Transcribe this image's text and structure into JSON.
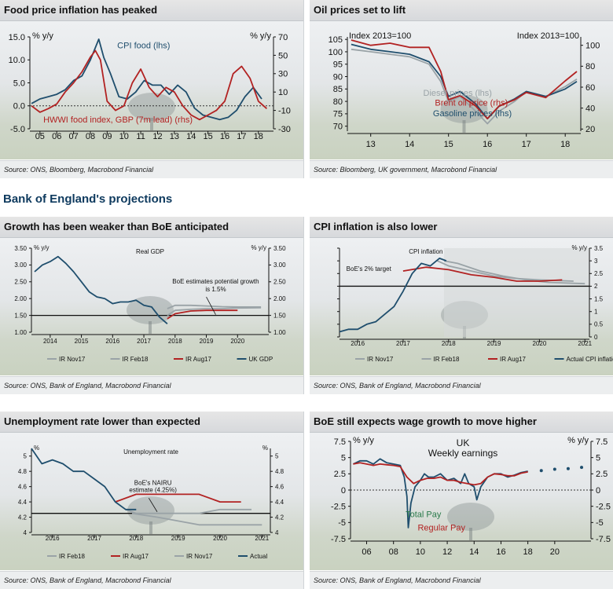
{
  "colors": {
    "navy": "#1f4e6d",
    "red": "#b22222",
    "grey": "#9aa3a7",
    "axis": "#111111"
  },
  "section_heading": "Bank of England's projections",
  "panels": [
    {
      "title": "Food price inflation has peaked",
      "source": "Source: ONS, Bloomberg, Macrobond Financial"
    },
    {
      "title": "Oil prices set to lift",
      "source": "Source: Bloomberg, UK government, Macrobond Financial"
    },
    {
      "title": "Growth has been weaker than BoE anticipated",
      "source": "Source: ONS, Bank of England, Macrobond Financial"
    },
    {
      "title": "CPI inflation is also lower",
      "source": "Source: ONS, Bank of England, Macrobond Financial"
    },
    {
      "title": "Unemployment rate lower than expected",
      "source": "Source: ONS, Bank of England, Macrobond Financial"
    },
    {
      "title": "BoE still expects wage growth to move higher",
      "source": "Source: ONS, Bank of England, Macrobond Financial"
    }
  ],
  "chart_data": [
    {
      "id": "food",
      "type": "line",
      "left_unit": "% y/y",
      "right_unit": "% y/y",
      "ylim": [
        -5,
        15
      ],
      "y_ticks": [
        15,
        10,
        5,
        0,
        -5
      ],
      "y_tick_labels": [
        "15.0",
        "10.0",
        "5.0",
        "0.0",
        "-5.0"
      ],
      "y2lim": [
        -30,
        70
      ],
      "y2_ticks": [
        70,
        50,
        30,
        10,
        -10,
        -30
      ],
      "xlim": [
        2004.4,
        2018.9
      ],
      "x_ticks": [
        2005,
        2006,
        2007,
        2008,
        2009,
        2010,
        2011,
        2012,
        2013,
        2014,
        2015,
        2016,
        2017,
        2018
      ],
      "x_tick_labels": [
        "05",
        "06",
        "07",
        "08",
        "09",
        "10",
        "11",
        "12",
        "13",
        "14",
        "15",
        "16",
        "17",
        "18"
      ],
      "zero_line": 0,
      "labels": [
        {
          "text": "CPI food (lhs)",
          "x": 2009.6,
          "y": 12.5,
          "color": "navy"
        },
        {
          "text": "HWWI food index, GBP (7m lead) (rhs)",
          "x": 2005.2,
          "y": -3.6,
          "color": "red"
        }
      ],
      "series": [
        {
          "name": "CPI food (lhs)",
          "color": "navy",
          "axis": "left",
          "x": [
            2004.5,
            2005,
            2005.5,
            2006,
            2006.5,
            2007,
            2007.5,
            2008,
            2008.5,
            2008.8,
            2009.2,
            2009.7,
            2010.2,
            2010.7,
            2011.2,
            2011.7,
            2012.2,
            2012.7,
            2013.2,
            2013.7,
            2014.2,
            2014.7,
            2015.2,
            2015.7,
            2016.2,
            2016.7,
            2017.2,
            2017.7,
            2018.2
          ],
          "values": [
            0.5,
            1.5,
            2.0,
            2.5,
            3.5,
            5.5,
            6.5,
            10.0,
            14.5,
            10.5,
            7.0,
            2.0,
            1.5,
            3.0,
            5.5,
            4.5,
            4.5,
            2.5,
            4.5,
            3.0,
            -0.5,
            -2.0,
            -2.5,
            -3.0,
            -2.5,
            -1.0,
            2.0,
            4.0,
            1.5
          ]
        },
        {
          "name": "HWWI food index, GBP (7m lead) (rhs)",
          "color": "red",
          "axis": "right",
          "x": [
            2004.5,
            2005,
            2005.5,
            2006,
            2006.5,
            2007,
            2007.5,
            2008,
            2008.3,
            2008.6,
            2009,
            2009.5,
            2010,
            2010.5,
            2011,
            2011.5,
            2012,
            2012.5,
            2013,
            2013.5,
            2014,
            2014.5,
            2015,
            2015.5,
            2016,
            2016.5,
            2017,
            2017.5,
            2018,
            2018.5
          ],
          "values": [
            -5,
            -12,
            -8,
            -3,
            10,
            20,
            32,
            48,
            55,
            45,
            0,
            -10,
            -5,
            20,
            35,
            15,
            5,
            15,
            10,
            -5,
            -15,
            -20,
            -15,
            -10,
            0,
            30,
            38,
            25,
            0,
            -8
          ]
        }
      ]
    },
    {
      "id": "oil",
      "type": "line",
      "left_unit": "Index 2013=100",
      "right_unit": "Index 2013=100",
      "ylim": [
        68,
        106
      ],
      "y_ticks": [
        105,
        100,
        95,
        90,
        85,
        80,
        75,
        70
      ],
      "y2lim": [
        18,
        108
      ],
      "y2_ticks": [
        100,
        80,
        60,
        40,
        20
      ],
      "xlim": [
        2012.4,
        2018.4
      ],
      "x_ticks": [
        2013,
        2014,
        2015,
        2016,
        2017,
        2018
      ],
      "x_tick_labels": [
        "13",
        "14",
        "15",
        "16",
        "17",
        "18"
      ],
      "labels": [
        {
          "text": "Diesel prices (lhs)",
          "x": 2014.35,
          "y": 82.2,
          "color": "grey"
        },
        {
          "text": "Brent oil price (rhs)",
          "x": 2014.65,
          "y": 78.3,
          "color": "red"
        },
        {
          "text": "Gasoline prices (lhs)",
          "x": 2014.6,
          "y": 74.0,
          "color": "navy"
        }
      ],
      "series": [
        {
          "name": "Diesel prices (lhs)",
          "color": "grey",
          "axis": "left",
          "x": [
            2012.5,
            2013,
            2013.5,
            2014,
            2014.5,
            2014.8,
            2015,
            2015.3,
            2015.7,
            2016,
            2016.3,
            2016.7,
            2017,
            2017.5,
            2018,
            2018.3
          ],
          "values": [
            101,
            100,
            99,
            98,
            95,
            88,
            80,
            82,
            76,
            71,
            76,
            80,
            84,
            82,
            86,
            89
          ]
        },
        {
          "name": "Gasoline prices (lhs)",
          "color": "navy",
          "axis": "left",
          "x": [
            2012.5,
            2013,
            2013.5,
            2014,
            2014.5,
            2014.8,
            2015,
            2015.3,
            2015.7,
            2016,
            2016.3,
            2016.7,
            2017,
            2017.5,
            2018,
            2018.3
          ],
          "values": [
            103,
            101,
            100,
            99,
            96,
            90,
            82,
            84,
            79,
            73,
            78,
            81,
            84,
            82,
            85,
            88
          ]
        },
        {
          "name": "Brent oil price (rhs)",
          "color": "red",
          "axis": "right",
          "x": [
            2012.5,
            2013,
            2013.5,
            2014,
            2014.5,
            2014.8,
            2015,
            2015.3,
            2015.7,
            2016,
            2016.3,
            2016.7,
            2017,
            2017.5,
            2018,
            2018.3
          ],
          "values": [
            105,
            100,
            102,
            98,
            98,
            75,
            48,
            52,
            42,
            30,
            42,
            48,
            55,
            50,
            66,
            75
          ]
        }
      ]
    },
    {
      "id": "gdp",
      "type": "line",
      "left_unit": "% y/y",
      "right_unit": "% y/y",
      "subtitle": "Real GDP",
      "ylim": [
        1.0,
        3.5
      ],
      "y_ticks": [
        3.5,
        3.0,
        2.5,
        2.0,
        1.5,
        1.0
      ],
      "y_tick_labels": [
        "3.50",
        "3.00",
        "2.50",
        "2.00",
        "1.50",
        "1.00"
      ],
      "xlim": [
        2013.4,
        2021.0
      ],
      "x_ticks": [
        2014,
        2015,
        2016,
        2017,
        2018,
        2019,
        2020
      ],
      "ref_line": 1.5,
      "annotation": "BoE estimates potential growth is 1.5%",
      "legend": [
        "IR Nov17",
        "IR Feb18",
        "IR Aug17",
        "UK GDP"
      ],
      "series": [
        {
          "name": "IR Nov17",
          "color": "grey",
          "x": [
            2017.75,
            2018,
            2018.5,
            2019,
            2019.5,
            2020,
            2020.75
          ],
          "values": [
            1.5,
            1.65,
            1.68,
            1.7,
            1.7,
            1.72,
            1.73
          ]
        },
        {
          "name": "IR Feb18",
          "color": "grey",
          "x": [
            2017.75,
            2018,
            2018.5,
            2019,
            2019.5,
            2020,
            2020.75
          ],
          "values": [
            1.7,
            1.8,
            1.8,
            1.78,
            1.76,
            1.75,
            1.75
          ]
        },
        {
          "name": "IR Aug17",
          "color": "red",
          "x": [
            2017.75,
            2018,
            2018.5,
            2019,
            2019.5,
            2020
          ],
          "values": [
            1.4,
            1.55,
            1.63,
            1.65,
            1.65,
            1.65
          ]
        },
        {
          "name": "UK GDP",
          "color": "navy",
          "x": [
            2013.5,
            2013.75,
            2014,
            2014.25,
            2014.5,
            2014.75,
            2015,
            2015.25,
            2015.5,
            2015.75,
            2016,
            2016.25,
            2016.5,
            2016.75,
            2017,
            2017.25,
            2017.5,
            2017.75
          ],
          "values": [
            2.8,
            3.0,
            3.1,
            3.25,
            3.05,
            2.8,
            2.5,
            2.2,
            2.05,
            2.0,
            1.85,
            1.9,
            1.9,
            1.95,
            1.8,
            1.75,
            1.45,
            1.25
          ]
        }
      ]
    },
    {
      "id": "cpi",
      "type": "line",
      "right_unit": "% y/y",
      "subtitle": "CPI inflation",
      "ylim": [
        0,
        3.5
      ],
      "y_ticks": [
        3.5,
        3.0,
        2.5,
        2.0,
        1.5,
        1.0,
        0.5,
        0.0
      ],
      "xlim": [
        2015.6,
        2021.1
      ],
      "x_ticks": [
        2016,
        2017,
        2018,
        2019,
        2020,
        2021
      ],
      "ref_line": 2.0,
      "annotation": "BoE's 2% target",
      "legend": [
        "IR Nov17",
        "IR Feb18",
        "IR Aug17",
        "Actual CPI inflation"
      ],
      "series": [
        {
          "name": "IR Nov17",
          "color": "grey",
          "x": [
            2017.75,
            2018,
            2018.5,
            2019,
            2019.5,
            2020,
            2020.75
          ],
          "values": [
            3.0,
            2.8,
            2.6,
            2.4,
            2.3,
            2.25,
            2.2
          ]
        },
        {
          "name": "IR Feb18",
          "color": "grey",
          "x": [
            2017.9,
            2018.2,
            2018.7,
            2019.2,
            2019.7,
            2020.2,
            2021
          ],
          "values": [
            3.0,
            2.9,
            2.6,
            2.4,
            2.25,
            2.15,
            2.1
          ]
        },
        {
          "name": "IR Aug17",
          "color": "red",
          "x": [
            2017,
            2017.5,
            2018,
            2018.5,
            2019,
            2019.5,
            2020,
            2020.5
          ],
          "values": [
            2.6,
            2.75,
            2.65,
            2.45,
            2.35,
            2.2,
            2.2,
            2.25
          ]
        },
        {
          "name": "Actual CPI inflation",
          "color": "navy",
          "x": [
            2015.6,
            2015.8,
            2016,
            2016.2,
            2016.4,
            2016.6,
            2016.8,
            2017,
            2017.2,
            2017.4,
            2017.6,
            2017.8,
            2017.95
          ],
          "values": [
            0.2,
            0.3,
            0.3,
            0.5,
            0.6,
            0.9,
            1.2,
            1.8,
            2.5,
            2.9,
            2.8,
            3.1,
            3.0
          ]
        }
      ]
    },
    {
      "id": "unemp",
      "type": "line",
      "left_unit": "%",
      "right_unit": "%",
      "subtitle": "Unemployment rate",
      "ylim": [
        4.0,
        5.1
      ],
      "y_ticks": [
        5.0,
        4.8,
        4.6,
        4.4,
        4.2,
        4.0
      ],
      "xlim": [
        2015.5,
        2021.2
      ],
      "x_ticks": [
        2016,
        2017,
        2018,
        2019,
        2020,
        2021
      ],
      "ref_line": 4.25,
      "annotation": "BoE's NAIRU estimate (4.25%)",
      "legend": [
        "IR Feb18",
        "IR Aug17",
        "IR Nov17",
        "Actual"
      ],
      "series": [
        {
          "name": "IR Feb18",
          "color": "grey",
          "x": [
            2017.9,
            2018.5,
            2019,
            2019.5,
            2020,
            2020.5,
            2021
          ],
          "values": [
            4.25,
            4.2,
            4.15,
            4.1,
            4.1,
            4.1,
            4.1
          ]
        },
        {
          "name": "IR Aug17",
          "color": "red",
          "x": [
            2017.5,
            2018,
            2018.5,
            2019,
            2019.5,
            2020,
            2020.5
          ],
          "values": [
            4.4,
            4.5,
            4.5,
            4.5,
            4.5,
            4.4,
            4.4
          ]
        },
        {
          "name": "IR Nov17",
          "color": "grey",
          "x": [
            2017.75,
            2018,
            2018.5,
            2019,
            2019.5,
            2020,
            2020.75
          ],
          "values": [
            4.3,
            4.25,
            4.25,
            4.25,
            4.25,
            4.3,
            4.3
          ]
        },
        {
          "name": "Actual",
          "color": "navy",
          "x": [
            2015.5,
            2015.75,
            2016,
            2016.25,
            2016.5,
            2016.75,
            2017,
            2017.25,
            2017.5,
            2017.75,
            2018
          ],
          "values": [
            5.1,
            4.9,
            4.95,
            4.9,
            4.8,
            4.8,
            4.7,
            4.6,
            4.4,
            4.3,
            4.3
          ]
        }
      ]
    },
    {
      "id": "wages",
      "type": "line",
      "left_unit": "% y/y",
      "right_unit": "% y/y",
      "subtitle": "UK Weekly earnings",
      "ylim": [
        -7.5,
        7.5
      ],
      "y_ticks": [
        7.5,
        5.0,
        2.5,
        0.0,
        -2.5,
        -5.0,
        -7.5
      ],
      "xlim": [
        2004.8,
        2022.7
      ],
      "x_ticks": [
        2006,
        2008,
        2010,
        2012,
        2014,
        2016,
        2018,
        2020
      ],
      "x_tick_labels": [
        "06",
        "08",
        "10",
        "12",
        "14",
        "16",
        "18",
        "20"
      ],
      "zero_line": 0,
      "labels": [
        {
          "text": "Total Pay",
          "x": 2008.9,
          "y": -4.2,
          "color": "#2a7a4a"
        },
        {
          "text": "Regular Pay",
          "x": 2009.8,
          "y": -6.2,
          "color": "red"
        }
      ],
      "projection": {
        "x": [
          2019,
          2020,
          2021,
          2022
        ],
        "values": [
          3.0,
          3.2,
          3.3,
          3.5
        ],
        "color": "navy"
      },
      "series": [
        {
          "name": "Total Pay",
          "color": "navy",
          "x": [
            2005,
            2005.5,
            2006,
            2006.5,
            2007,
            2007.5,
            2008,
            2008.5,
            2008.8,
            2009,
            2009.1,
            2009.3,
            2009.6,
            2010,
            2010.3,
            2010.6,
            2011,
            2011.5,
            2012,
            2012.5,
            2013,
            2013.3,
            2013.6,
            2014,
            2014.2,
            2014.5,
            2015,
            2015.5,
            2016,
            2016.5,
            2017,
            2017.5,
            2018
          ],
          "values": [
            4.0,
            4.5,
            4.5,
            4.0,
            4.8,
            4.2,
            4.0,
            3.8,
            2.0,
            -1.0,
            -5.8,
            -2.0,
            0.5,
            1.5,
            2.5,
            2.0,
            2.0,
            2.5,
            1.5,
            1.8,
            1.0,
            2.5,
            1.0,
            0.5,
            -1.5,
            0.5,
            2.0,
            2.5,
            2.5,
            2.0,
            2.3,
            2.7,
            2.9
          ]
        },
        {
          "name": "Regular Pay",
          "color": "red",
          "x": [
            2005,
            2005.5,
            2006,
            2006.5,
            2007,
            2007.5,
            2008,
            2008.5,
            2009,
            2009.5,
            2010,
            2010.5,
            2011,
            2011.5,
            2012,
            2012.5,
            2013,
            2013.5,
            2014,
            2014.5,
            2015,
            2015.5,
            2016,
            2016.5,
            2017,
            2017.5,
            2018
          ],
          "values": [
            4.0,
            4.2,
            4.0,
            3.8,
            4.0,
            3.9,
            3.8,
            3.6,
            2.0,
            1.0,
            1.5,
            1.8,
            1.8,
            2.0,
            1.5,
            1.5,
            1.2,
            1.0,
            0.8,
            1.0,
            2.0,
            2.5,
            2.4,
            2.2,
            2.2,
            2.6,
            2.8
          ]
        }
      ]
    }
  ]
}
